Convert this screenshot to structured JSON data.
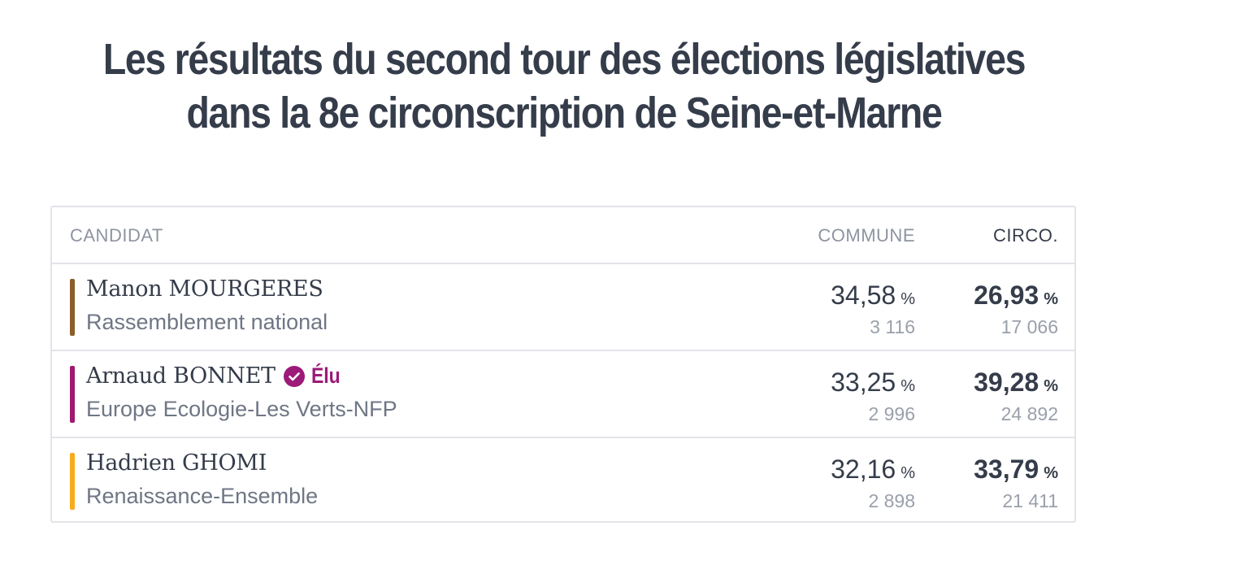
{
  "title": {
    "line1": "Les résultats du second tour des élections législatives",
    "line2": "dans la 8e circonscription de Seine-et-Marne"
  },
  "table": {
    "headers": {
      "candidat": "CANDIDAT",
      "commune": "COMMUNE",
      "circo": "CIRCO."
    },
    "percent_sign": "%",
    "elected_label": "Élu",
    "rows": [
      {
        "name": "Manon MOURGERES",
        "party": "Rassemblement national",
        "color": "#8b5e2a",
        "elected": false,
        "commune_pct": "34,58",
        "commune_votes": "3 116",
        "circo_pct": "26,93",
        "circo_votes": "17 066"
      },
      {
        "name": "Arnaud BONNET",
        "party": "Europe Ecologie-Les Verts-NFP",
        "color": "#a0186f",
        "elected": true,
        "commune_pct": "33,25",
        "commune_votes": "2 996",
        "circo_pct": "39,28",
        "circo_votes": "24 892"
      },
      {
        "name": "Hadrien GHOMI",
        "party": "Renaissance-Ensemble",
        "color": "#f8ac1c",
        "elected": false,
        "commune_pct": "32,16",
        "commune_votes": "2 898",
        "circo_pct": "33,79",
        "circo_votes": "21 411"
      }
    ]
  },
  "colors": {
    "text": "#353c4a",
    "muted": "#8e94a1",
    "border": "#e2e4e8",
    "elected": "#9c1a78"
  }
}
